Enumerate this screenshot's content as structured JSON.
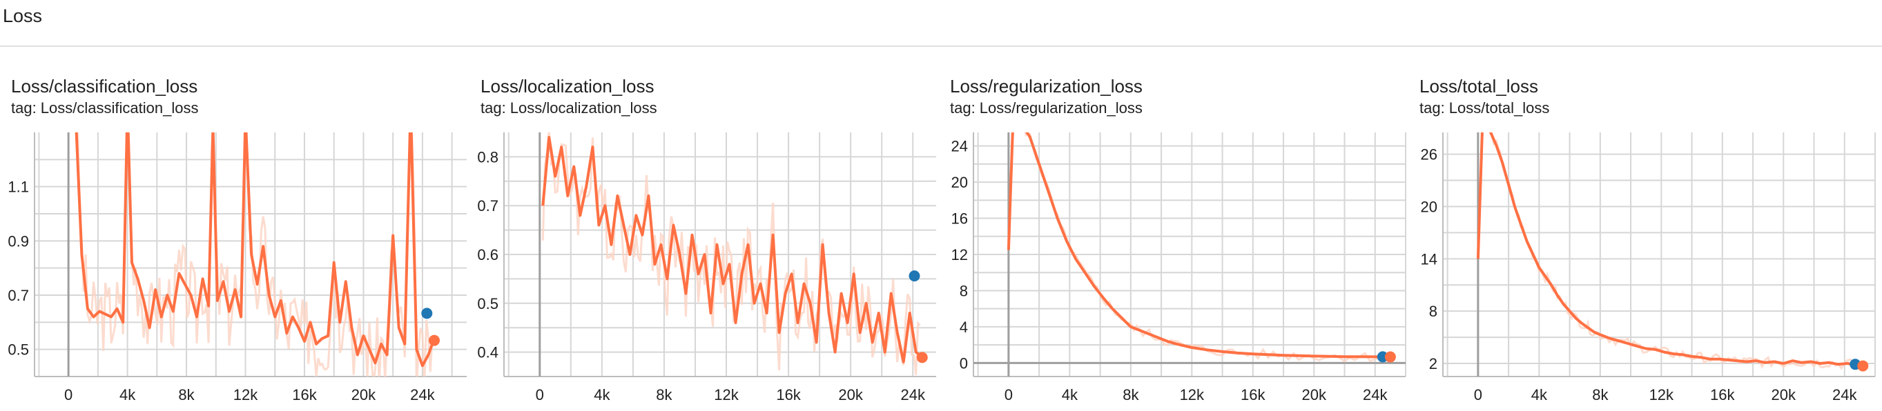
{
  "section": {
    "title": "Loss"
  },
  "colors": {
    "line": "#ff7043",
    "line_raw": "#fbd3c3",
    "marker_blue": "#1f77b4",
    "marker_orange": "#ff7043",
    "grid": "#d6d6d6"
  },
  "chart_data": [
    {
      "type": "line",
      "title": "Loss/classification_loss",
      "tag_text": "tag: Loss/classification_loss",
      "x_ticks": [
        0,
        4000,
        8000,
        12000,
        16000,
        20000,
        24000
      ],
      "x_tick_labels": [
        "0",
        "4k",
        "8k",
        "12k",
        "16k",
        "20k",
        "24k"
      ],
      "y_ticks": [
        0.5,
        0.7,
        0.9,
        1.1
      ],
      "y_tick_labels": [
        "0.5",
        "0.7",
        "0.9",
        "1.1"
      ],
      "xlim": [
        -2300,
        27000
      ],
      "ylim": [
        0.4,
        1.3
      ],
      "series": [
        {
          "x": [
            500,
            900,
            1300,
            1700,
            2100,
            2500,
            2900,
            3300,
            3700,
            4000,
            4300,
            4700,
            5100,
            5500,
            5900,
            6300,
            6700,
            7100,
            7500,
            7900,
            8300,
            8700,
            9100,
            9500,
            9800,
            10100,
            10500,
            10900,
            11300,
            11700,
            12000,
            12400,
            12800,
            13200,
            13600,
            14000,
            14400,
            14800,
            15200,
            15600,
            16000,
            16400,
            16800,
            17200,
            17600,
            18000,
            18400,
            18800,
            19200,
            19600,
            20000,
            20400,
            20800,
            21200,
            21600,
            22000,
            22400,
            22800,
            23200,
            23600,
            24000,
            24400,
            24800
          ],
          "y": [
            1.35,
            0.85,
            0.65,
            0.62,
            0.64,
            0.63,
            0.62,
            0.65,
            0.6,
            1.4,
            0.82,
            0.76,
            0.68,
            0.58,
            0.72,
            0.62,
            0.7,
            0.64,
            0.78,
            0.74,
            0.7,
            0.62,
            0.76,
            0.66,
            1.32,
            0.68,
            0.75,
            0.64,
            0.72,
            0.62,
            1.36,
            0.85,
            0.74,
            0.88,
            0.7,
            0.62,
            0.68,
            0.56,
            0.62,
            0.58,
            0.53,
            0.6,
            0.52,
            0.54,
            0.55,
            0.82,
            0.6,
            0.75,
            0.58,
            0.48,
            0.55,
            0.5,
            0.45,
            0.52,
            0.48,
            0.92,
            0.58,
            0.52,
            1.4,
            0.5,
            0.44,
            0.48,
            0.54
          ]
        }
      ],
      "smoothed_last": 0.633,
      "raw_last": 0.533
    },
    {
      "type": "line",
      "title": "Loss/localization_loss",
      "tag_text": "tag: Loss/localization_loss",
      "x_ticks": [
        0,
        4000,
        8000,
        12000,
        16000,
        20000,
        24000
      ],
      "x_tick_labels": [
        "0",
        "4k",
        "8k",
        "12k",
        "16k",
        "20k",
        "24k"
      ],
      "y_ticks": [
        0.4,
        0.5,
        0.6,
        0.7,
        0.8
      ],
      "y_tick_labels": [
        "0.4",
        "0.5",
        "0.6",
        "0.7",
        "0.8"
      ],
      "xlim": [
        -2300,
        25500
      ],
      "ylim": [
        0.35,
        0.85
      ],
      "series": [
        {
          "x": [
            200,
            600,
            1000,
            1400,
            1800,
            2200,
            2600,
            3000,
            3400,
            3800,
            4200,
            4600,
            5000,
            5400,
            5800,
            6200,
            6600,
            7000,
            7400,
            7800,
            8200,
            8600,
            9000,
            9400,
            9800,
            10200,
            10600,
            11000,
            11400,
            11800,
            12200,
            12600,
            13000,
            13400,
            13800,
            14200,
            14600,
            15000,
            15400,
            15800,
            16200,
            16600,
            17000,
            17400,
            17800,
            18200,
            18600,
            19000,
            19400,
            19800,
            20200,
            20600,
            21000,
            21400,
            21800,
            22200,
            22600,
            23000,
            23400,
            23800,
            24200,
            24600
          ],
          "y": [
            0.7,
            0.84,
            0.76,
            0.82,
            0.72,
            0.78,
            0.68,
            0.74,
            0.82,
            0.66,
            0.7,
            0.62,
            0.72,
            0.66,
            0.6,
            0.68,
            0.64,
            0.72,
            0.58,
            0.62,
            0.55,
            0.66,
            0.6,
            0.52,
            0.64,
            0.56,
            0.6,
            0.48,
            0.62,
            0.54,
            0.58,
            0.46,
            0.56,
            0.62,
            0.5,
            0.54,
            0.48,
            0.64,
            0.44,
            0.52,
            0.56,
            0.46,
            0.54,
            0.5,
            0.42,
            0.62,
            0.48,
            0.4,
            0.52,
            0.46,
            0.56,
            0.44,
            0.5,
            0.42,
            0.48,
            0.4,
            0.52,
            0.44,
            0.38,
            0.48,
            0.4,
            0.39
          ]
        }
      ],
      "smoothed_last": 0.556,
      "raw_last": 0.389
    },
    {
      "type": "line",
      "title": "Loss/regularization_loss",
      "tag_text": "tag: Loss/regularization_loss",
      "x_ticks": [
        0,
        4000,
        8000,
        12000,
        16000,
        20000,
        24000
      ],
      "x_tick_labels": [
        "0",
        "4k",
        "8k",
        "12k",
        "16k",
        "20k",
        "24k"
      ],
      "y_ticks": [
        0,
        4,
        8,
        12,
        16,
        20,
        24
      ],
      "y_tick_labels": [
        "0",
        "4",
        "8",
        "12",
        "16",
        "20",
        "24"
      ],
      "xlim": [
        -2300,
        26000
      ],
      "ylim": [
        -1.5,
        25.5
      ],
      "series": [
        {
          "x": [
            0,
            150,
            300,
            600,
            1000,
            1400,
            2000,
            2600,
            3200,
            3800,
            4400,
            5000,
            5600,
            6200,
            6800,
            7400,
            8000,
            8600,
            9200,
            9800,
            10400,
            11000,
            12000,
            13000,
            14000,
            15000,
            16000,
            17000,
            18000,
            19000,
            20000,
            21000,
            22000,
            23000,
            24000,
            25000
          ],
          "y": [
            12.5,
            20,
            27,
            27,
            26,
            25,
            22,
            19,
            16,
            13.5,
            11.5,
            10,
            8.5,
            7.2,
            6,
            5,
            4,
            3.6,
            3.2,
            2.8,
            2.4,
            2.1,
            1.7,
            1.45,
            1.25,
            1.1,
            1.0,
            0.92,
            0.85,
            0.8,
            0.76,
            0.73,
            0.7,
            0.69,
            0.68,
            0.67
          ]
        }
      ],
      "smoothed_last": 0.68,
      "raw_last": 0.67
    },
    {
      "type": "line",
      "title": "Loss/total_loss",
      "tag_text": "tag: Loss/total_loss",
      "x_ticks": [
        0,
        4000,
        8000,
        12000,
        16000,
        20000,
        24000
      ],
      "x_tick_labels": [
        "0",
        "4k",
        "8k",
        "12k",
        "16k",
        "20k",
        "24k"
      ],
      "y_ticks": [
        2,
        8,
        14,
        20,
        26
      ],
      "y_tick_labels": [
        "2",
        "8",
        "14",
        "20",
        "26"
      ],
      "xlim": [
        -2300,
        26000
      ],
      "ylim": [
        0.5,
        28.5
      ],
      "series": [
        {
          "x": [
            0,
            150,
            300,
            700,
            1200,
            1600,
            2000,
            2400,
            2800,
            3200,
            3600,
            4000,
            4400,
            4800,
            5200,
            5600,
            6000,
            6400,
            6800,
            7200,
            7600,
            8000,
            8600,
            9200,
            9800,
            10400,
            11000,
            11600,
            12200,
            12800,
            13400,
            14000,
            14600,
            15200,
            15800,
            16400,
            17000,
            17600,
            18200,
            18800,
            19400,
            20000,
            20600,
            21200,
            21800,
            22400,
            23000,
            23600,
            24200,
            24800,
            25200
          ],
          "y": [
            14,
            22,
            30,
            29,
            27,
            25,
            22.5,
            20,
            18,
            16,
            14.5,
            13,
            12,
            11,
            9.8,
            8.8,
            8,
            7.2,
            6.6,
            6.1,
            5.6,
            5.3,
            4.9,
            4.6,
            4.3,
            4.0,
            3.7,
            3.6,
            3.3,
            3.1,
            3.0,
            2.8,
            2.7,
            2.5,
            2.5,
            2.4,
            2.3,
            2.2,
            2.3,
            2.1,
            2.2,
            2.0,
            2.3,
            2.1,
            2.2,
            2.0,
            2.1,
            1.9,
            2.0,
            1.8,
            1.7
          ]
        }
      ],
      "smoothed_last": 1.9,
      "raw_last": 1.72
    }
  ]
}
